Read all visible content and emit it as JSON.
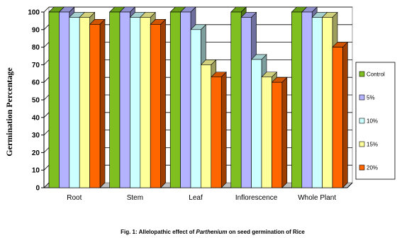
{
  "chart_data": {
    "type": "bar",
    "categories": [
      "Root",
      "Stem",
      "Leaf",
      "Inflorescence",
      "Whole Plant"
    ],
    "series": [
      {
        "name": "Control",
        "color": "#7fbf1f",
        "values": [
          100,
          100,
          100,
          100,
          100
        ]
      },
      {
        "name": "5%",
        "color": "#b3b3ff",
        "values": [
          100,
          100,
          100,
          97,
          100
        ]
      },
      {
        "name": "10%",
        "color": "#ccffff",
        "values": [
          97,
          97,
          90,
          73,
          97
        ]
      },
      {
        "name": "15%",
        "color": "#ffff99",
        "values": [
          97,
          97,
          70,
          63,
          97
        ]
      },
      {
        "name": "20%",
        "color": "#ff6600",
        "values": [
          93,
          93,
          63,
          60,
          80
        ]
      }
    ],
    "ylabel": "Germination Percentage",
    "xlabel": "",
    "ylim": [
      0,
      100
    ],
    "yticks": [
      0,
      10,
      20,
      30,
      40,
      50,
      60,
      70,
      80,
      90,
      100
    ],
    "grid": true,
    "legend": "right",
    "caption": {
      "prefix": "Fig. 1: Allelopathic effect of ",
      "italic": "Parthenium",
      "suffix": " on seed germination of Rice"
    }
  }
}
